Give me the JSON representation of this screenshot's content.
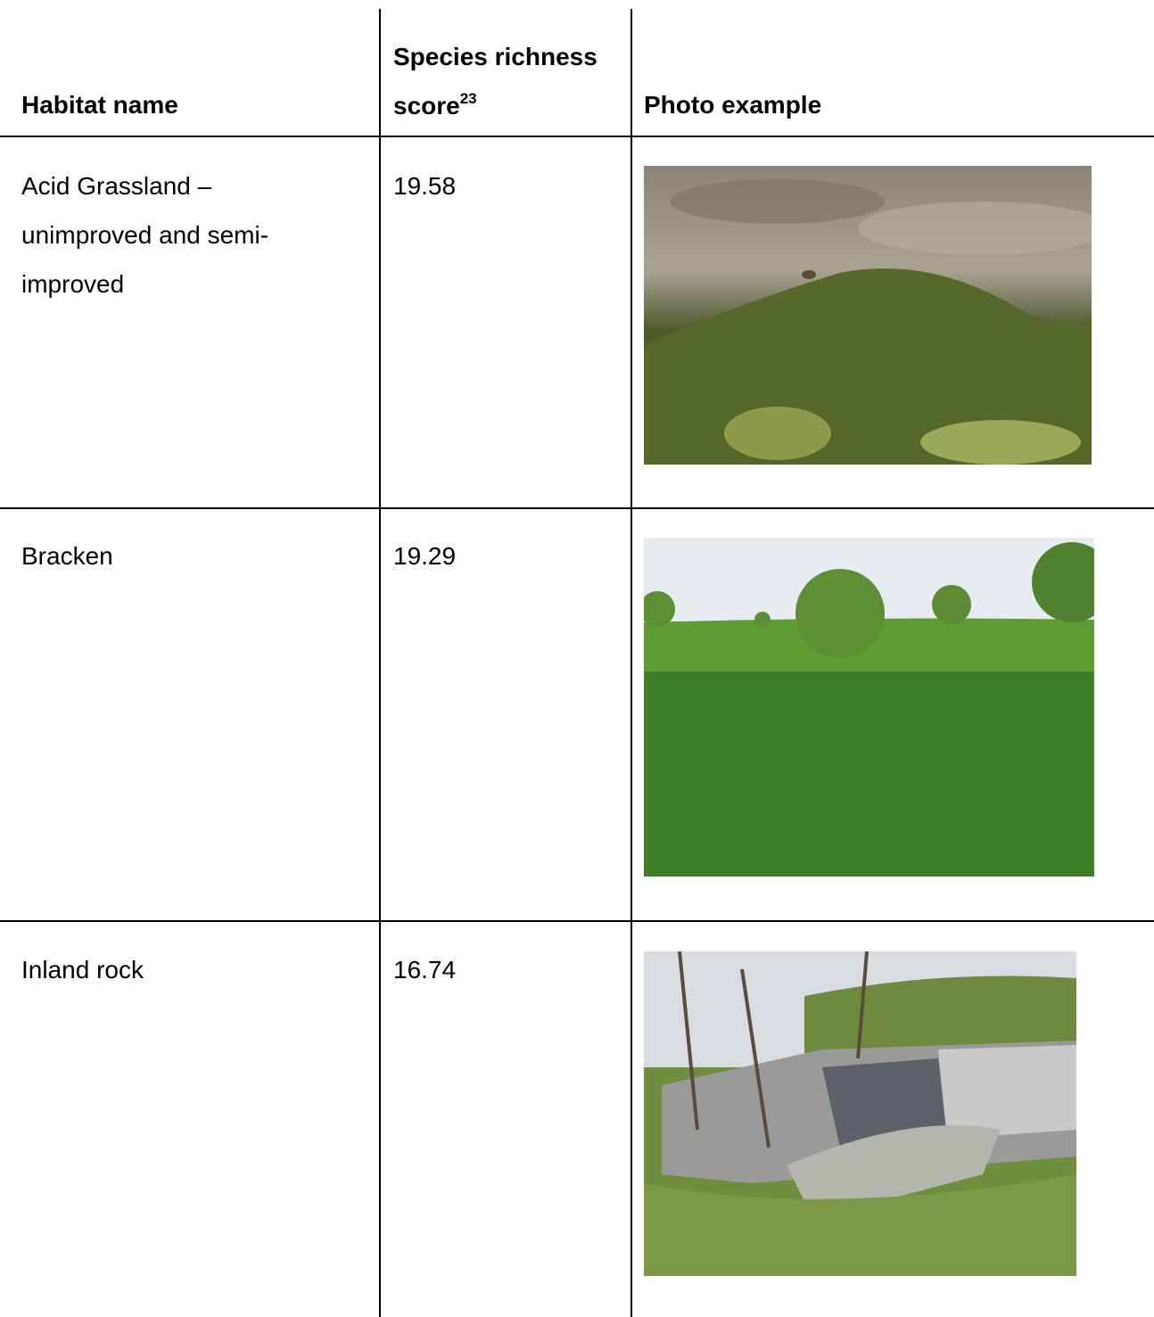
{
  "header": {
    "name": "Habitat name",
    "score": "Species richness score",
    "footnote": "23",
    "photo": "Photo example"
  },
  "rows": [
    {
      "name": "Acid Grassland – unimproved and semi-improved",
      "score": 19.58
    },
    {
      "name": "Bracken",
      "score": 19.29
    },
    {
      "name": "Inland rock",
      "score": 16.74
    }
  ]
}
